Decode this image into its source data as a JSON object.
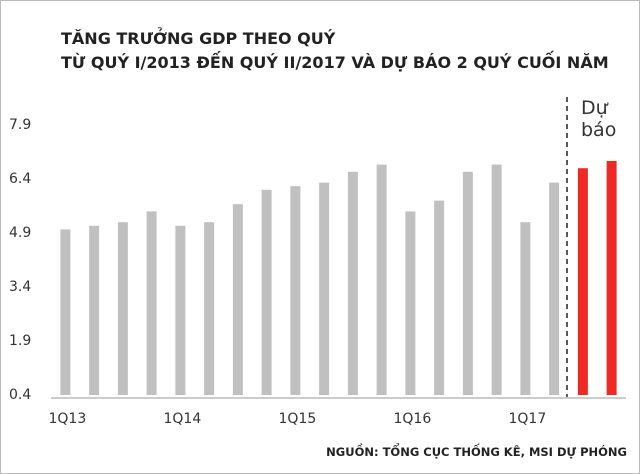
{
  "chart_data": {
    "type": "bar",
    "title": "TĂNG TRƯỞNG GDP THEO QUÝ",
    "subtitle": "TỪ QUÝ I/2013 ĐẾN QUÝ II/2017 VÀ DỰ BÁO 2 QUÝ CUỐI NĂM",
    "categories": [
      "1Q13",
      null,
      null,
      null,
      "1Q14",
      null,
      null,
      null,
      "1Q15",
      null,
      null,
      null,
      "1Q16",
      null,
      null,
      null,
      "1Q17",
      null,
      null,
      null
    ],
    "values": [
      5.0,
      5.1,
      5.2,
      5.5,
      5.1,
      5.2,
      5.7,
      6.1,
      6.2,
      6.3,
      6.6,
      6.8,
      5.5,
      5.8,
      6.6,
      6.8,
      5.2,
      6.3,
      6.7,
      6.9
    ],
    "colors": [
      "#c0c0c0",
      "#c0c0c0",
      "#c0c0c0",
      "#c0c0c0",
      "#c0c0c0",
      "#c0c0c0",
      "#c0c0c0",
      "#c0c0c0",
      "#c0c0c0",
      "#c0c0c0",
      "#c0c0c0",
      "#c0c0c0",
      "#c0c0c0",
      "#c0c0c0",
      "#c0c0c0",
      "#c0c0c0",
      "#c0c0c0",
      "#c0c0c0",
      "#ee2a24",
      "#ee2a24"
    ],
    "ylim": [
      0.4,
      7.9
    ],
    "yticks": [
      0.4,
      1.9,
      3.4,
      4.9,
      6.4,
      7.9
    ],
    "grid": false,
    "annotation": "Dự báo",
    "source": "NGUỒN: TỔNG CỤC THỐNG KÊ, MSI DỰ PHÓNG"
  }
}
